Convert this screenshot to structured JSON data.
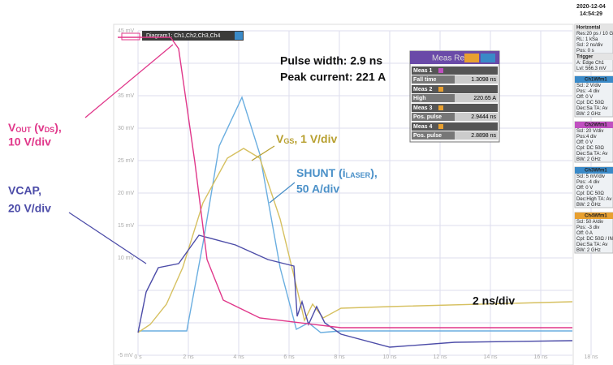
{
  "datetime": {
    "date": "2020-12-04",
    "time": "14:54:29"
  },
  "diagram_tab": "Diagram1: Ch1,Ch2,Ch3,Ch4",
  "y_axis_labels": [
    "45 mV",
    "35 mV",
    "30 mV",
    "25 mV",
    "20 mV",
    "15 mV",
    "10 mV",
    "-5 mV"
  ],
  "x_axis_labels": [
    "0 s",
    "2 ns",
    "4 ns",
    "6 ns",
    "8 ns",
    "10 ns",
    "12 ns",
    "14 ns",
    "16 ns",
    "18 ns"
  ],
  "annotations": {
    "pulse_width": "Pulse width: 2.9 ns",
    "peak_current": "Peak current: 221 A",
    "vout": {
      "line1": [
        "V",
        "OUT",
        " (v",
        "DS",
        "),"
      ],
      "line2": "10 V/div"
    },
    "vcap": {
      "line1": "VCAP,",
      "line2": "20 V/div"
    },
    "vgs": [
      "V",
      "GS",
      ", 1 V/div"
    ],
    "shunt": {
      "line1": [
        "SHUNT (i",
        "LASER",
        "),"
      ],
      "line2": "50 A/div"
    },
    "timebase": "2 ns/div"
  },
  "measurements": {
    "title": "Meas Res",
    "rows": [
      [
        "Meas 1",
        "Fall time",
        "1.3098 ns"
      ],
      [
        "Meas 2",
        "High",
        "220.65 A"
      ],
      [
        "Meas 3",
        "Pos. pulse",
        "2.9444 ns"
      ],
      [
        "Meas 4",
        "Pos. pulse",
        "2.8898 ns"
      ]
    ]
  },
  "side_panel": [
    {
      "header": "Horizontal",
      "lines": [
        "Res:20 ps / 10 GSa/s",
        "RL: 1 kSa",
        "Scl: 2 ns/div",
        "Pos: 0 s"
      ]
    },
    {
      "header": "Trigger",
      "lines": [
        "A: Edge Ch1",
        "Lvl: 566.3 mV"
      ]
    },
    {
      "header": "Ch1Wfm1",
      "lines": [
        "Scl: 2 V/div",
        "Pos: -4 div",
        "Off: 0 V",
        "Cpl: DC 50Ω",
        "Dec:Sa TA: Av",
        "BW: 2 GHz"
      ]
    },
    {
      "header": "Ch2Wfm1",
      "lines": [
        "Scl: 20 V/div",
        "Pos:4 div",
        "Off: 0 V",
        "Cpl: DC 50Ω",
        "Dec:Sa TA: Av",
        "BW: 2 GHz"
      ]
    },
    {
      "header": "Ch3Wfm1",
      "lines": [
        "Scl: 5 mV/div",
        "Pos: -4 div",
        "Off: 0 V",
        "Cpl: DC 50Ω",
        "Dec:High TA: Av",
        "BW: 2 GHz"
      ]
    },
    {
      "header": "Ch4Wfm1",
      "lines": [
        "Scl: 50 A/div",
        "Pos: -3 div",
        "Off: 0 A",
        "Cpl: DC 50Ω / INV",
        "Dec:Sa TA: Av",
        "BW: 2 GHz"
      ]
    }
  ]
}
